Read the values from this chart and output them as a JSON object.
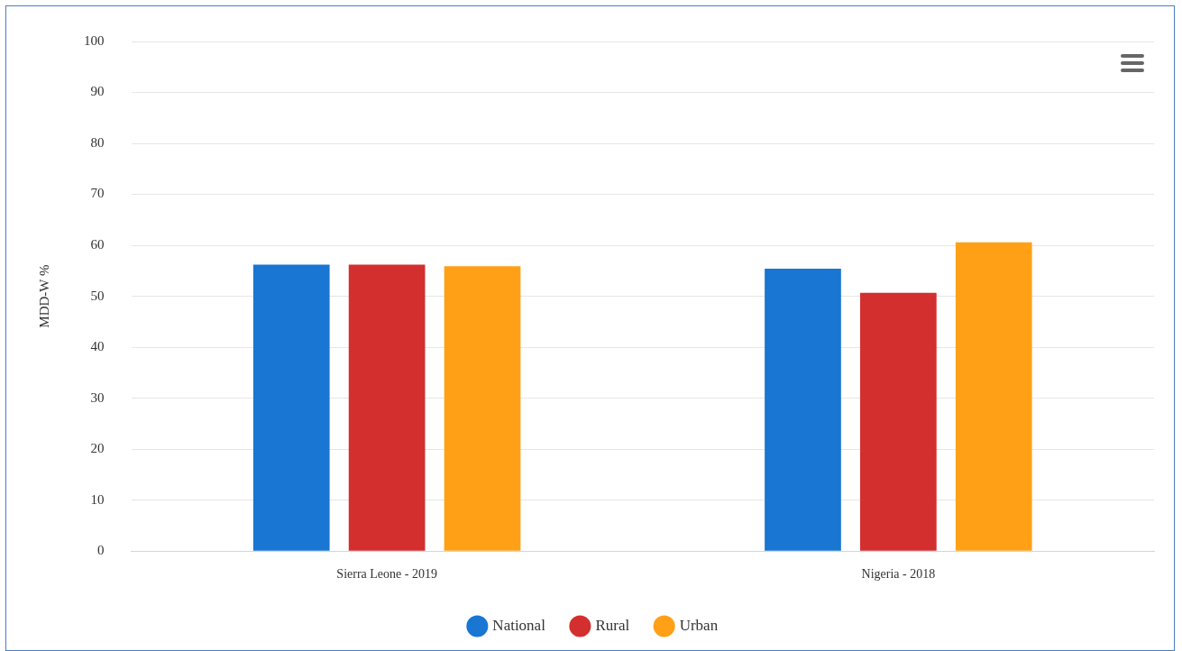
{
  "chart_data": {
    "type": "bar",
    "ylabel": "MDD-W %",
    "categories": [
      "Sierra Leone - 2019",
      "Nigeria - 2018"
    ],
    "series": [
      {
        "name": "National",
        "color": "#1976d2",
        "values": [
          56.2,
          55.4
        ]
      },
      {
        "name": "Rural",
        "color": "#d32f2f",
        "values": [
          56.2,
          50.7
        ]
      },
      {
        "name": "Urban",
        "color": "#ffa016",
        "values": [
          55.9,
          60.6
        ]
      }
    ],
    "ylim": [
      0,
      100
    ],
    "yticks": [
      0,
      10,
      20,
      30,
      40,
      50,
      60,
      70,
      80,
      90,
      100
    ],
    "grid": "y",
    "legend": "bottom"
  }
}
